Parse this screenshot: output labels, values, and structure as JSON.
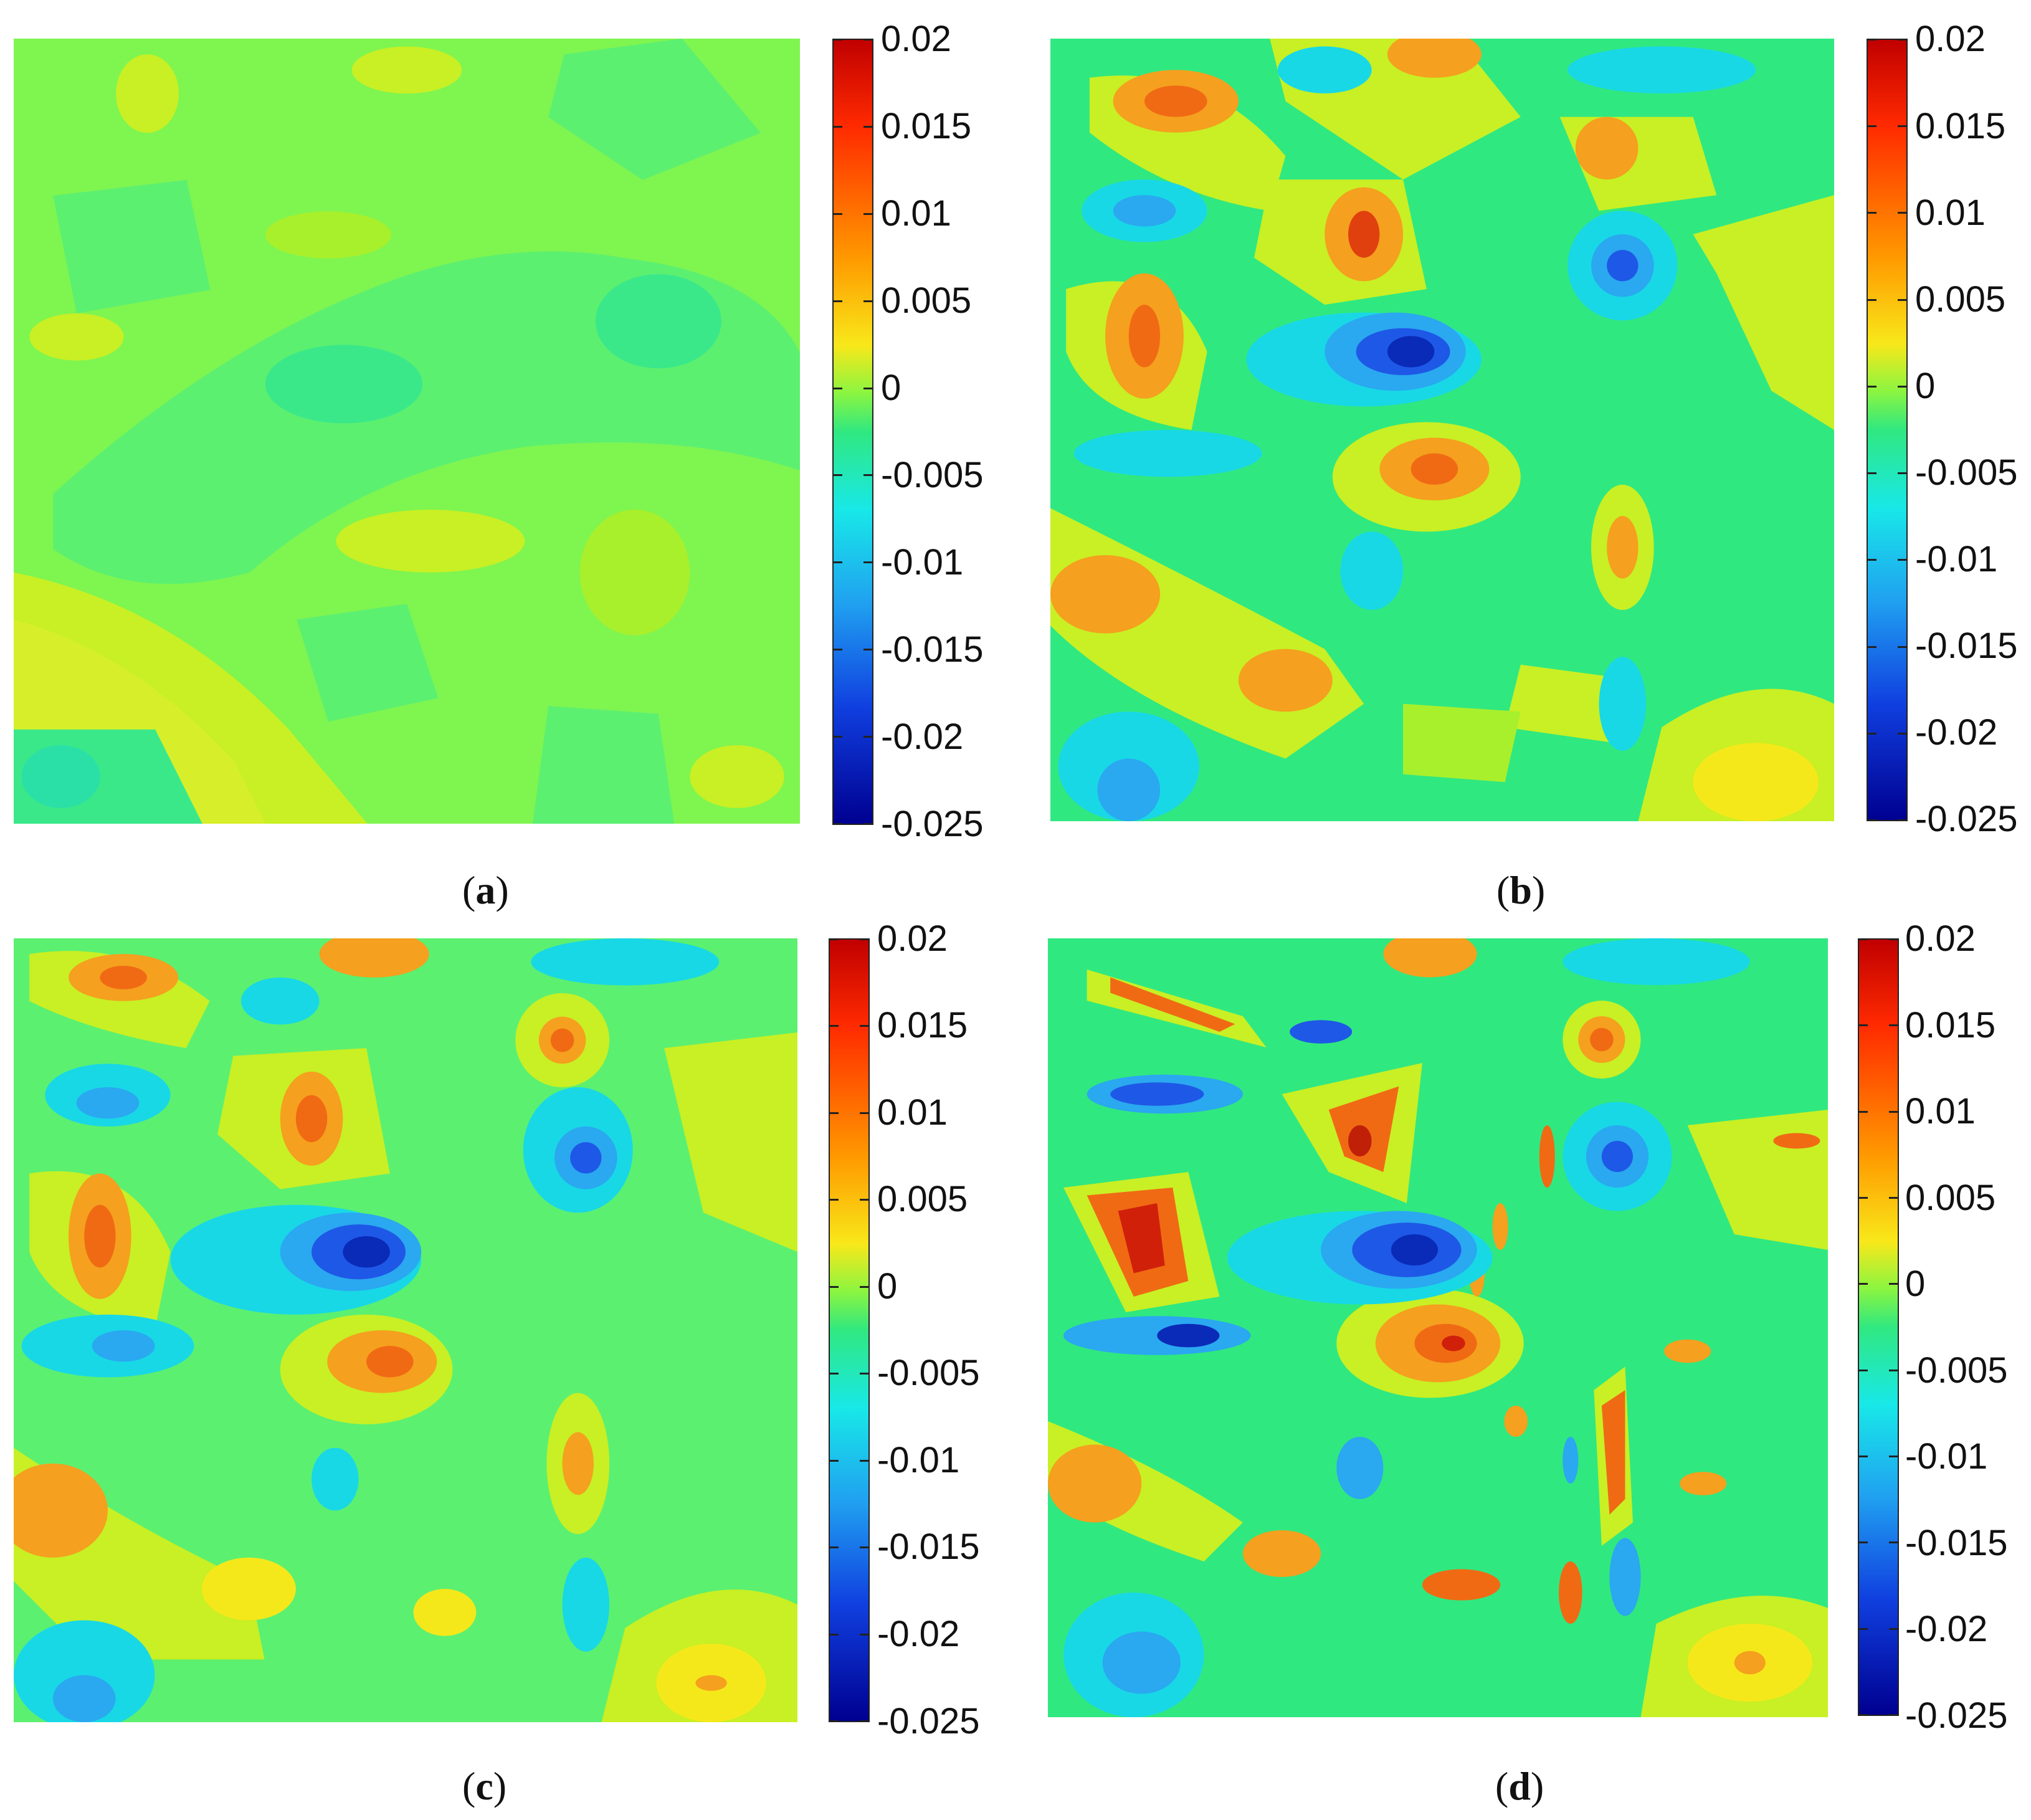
{
  "chart_data": [
    {
      "type": "heatmap",
      "panel_label": "a",
      "colorbar_ticks": [
        "0.02",
        "0.015",
        "0.01",
        "0.005",
        "0",
        "-0.005",
        "-0.01",
        "-0.015",
        "-0.02",
        "-0.025"
      ],
      "value_range": [
        -0.025,
        0.02
      ],
      "colormap": "jet"
    },
    {
      "type": "heatmap",
      "panel_label": "b",
      "colorbar_ticks": [
        "0.02",
        "0.015",
        "0.01",
        "0.005",
        "0",
        "-0.005",
        "-0.01",
        "-0.015",
        "-0.02",
        "-0.025"
      ],
      "value_range": [
        -0.025,
        0.02
      ],
      "colormap": "jet"
    },
    {
      "type": "heatmap",
      "panel_label": "c",
      "colorbar_ticks": [
        "0.02",
        "0.015",
        "0.01",
        "0.005",
        "0",
        "-0.005",
        "-0.01",
        "-0.015",
        "-0.02",
        "-0.025"
      ],
      "value_range": [
        -0.025,
        0.02
      ],
      "colormap": "jet"
    },
    {
      "type": "heatmap",
      "panel_label": "d",
      "colorbar_ticks": [
        "0.02",
        "0.015",
        "0.01",
        "0.005",
        "0",
        "-0.005",
        "-0.01",
        "-0.015",
        "-0.02",
        "-0.025"
      ],
      "value_range": [
        -0.025,
        0.02
      ],
      "colormap": "jet"
    }
  ],
  "colors": {
    "background_green": "#5cf070",
    "light_green": "#7ff550",
    "yellow_green": "#c8f024",
    "yellow": "#f5e81a",
    "orange": "#f5a01e",
    "dark_orange": "#f06a14",
    "red": "#e02a10",
    "green_cyan": "#1fe596",
    "cyan": "#18d8e6",
    "light_blue": "#2aa8f0",
    "blue": "#1e58e6",
    "dark_blue": "#0a2ab8"
  }
}
